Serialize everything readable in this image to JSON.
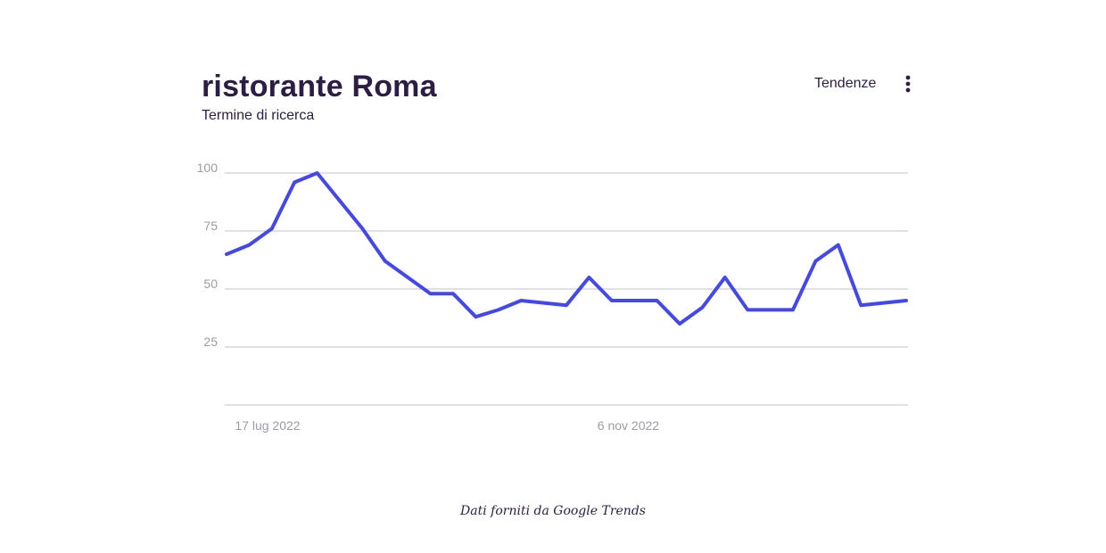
{
  "header": {
    "title": "ristorante Roma",
    "subtitle": "Termine di ricerca",
    "trend_label": "Tendenze"
  },
  "icons": {
    "menu": "more-vertical-icon"
  },
  "footer": {
    "text": "Dati forniti da Google Trends"
  },
  "colors": {
    "line": "#4348ee",
    "grid": "#c4c2cc",
    "text": "#2b1d45",
    "tick": "#9e9aa8"
  },
  "chart_data": {
    "type": "line",
    "title": "ristorante Roma",
    "ylim": [
      0,
      100
    ],
    "yticks": [
      100,
      75,
      50,
      25
    ],
    "grid": true,
    "x_tick_labels": [
      {
        "label": "17 lug 2022",
        "index": 1
      },
      {
        "label": "6 nov 2022",
        "index": 17
      }
    ],
    "series": [
      {
        "values": [
          65,
          69,
          76,
          96,
          100,
          88,
          76,
          62,
          55,
          48,
          48,
          38,
          41,
          45,
          44,
          43,
          55,
          45,
          45,
          45,
          35,
          42,
          55,
          41,
          41,
          41,
          62,
          69,
          43,
          44,
          45
        ]
      }
    ]
  }
}
